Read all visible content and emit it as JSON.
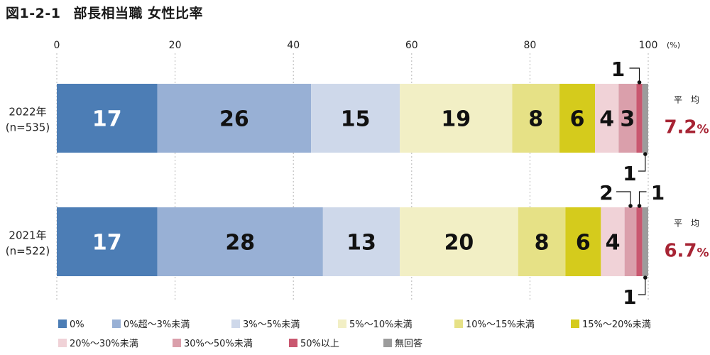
{
  "chart_data": {
    "type": "bar",
    "orientation": "horizontal-stacked",
    "title_label": "図1-2-1",
    "title": "部長相当職 女性比率",
    "xlim": [
      0,
      100
    ],
    "x_ticks": [
      "0",
      "20",
      "40",
      "60",
      "80",
      "100"
    ],
    "x_unit": "(%)",
    "grid": true,
    "categories": [
      {
        "label": "2022年",
        "n": "(n=535)",
        "avg_label": "平　均",
        "avg_value": "7.2",
        "avg_unit": "%"
      },
      {
        "label": "2021年",
        "n": "(n=522)",
        "avg_label": "平　均",
        "avg_value": "6.7",
        "avg_unit": "%"
      }
    ],
    "series": [
      {
        "name": "0%",
        "color": "#4c7db5",
        "values": [
          17,
          17
        ]
      },
      {
        "name": "0%超～3%未満",
        "color": "#98b0d5",
        "values": [
          26,
          28
        ]
      },
      {
        "name": "3%～5%未満",
        "color": "#ced8ea",
        "values": [
          15,
          13
        ]
      },
      {
        "name": "5%～10%未満",
        "color": "#f2efc5",
        "values": [
          19,
          20
        ]
      },
      {
        "name": "10%～15%未満",
        "color": "#e6e186",
        "values": [
          8,
          8
        ]
      },
      {
        "name": "15%～20%未満",
        "color": "#d5cb1c",
        "values": [
          6,
          6
        ]
      },
      {
        "name": "20%～30%未満",
        "color": "#f0d2d7",
        "values": [
          4,
          4
        ]
      },
      {
        "name": "30%～50%未満",
        "color": "#da9fab",
        "values": [
          3,
          2
        ]
      },
      {
        "name": "50%以上",
        "color": "#c9576f",
        "values": [
          1,
          1
        ]
      },
      {
        "name": "無回答",
        "color": "#9c9c9c",
        "values": [
          1,
          1
        ]
      }
    ],
    "legend_position": "bottom",
    "avg_color": "#a72434"
  }
}
